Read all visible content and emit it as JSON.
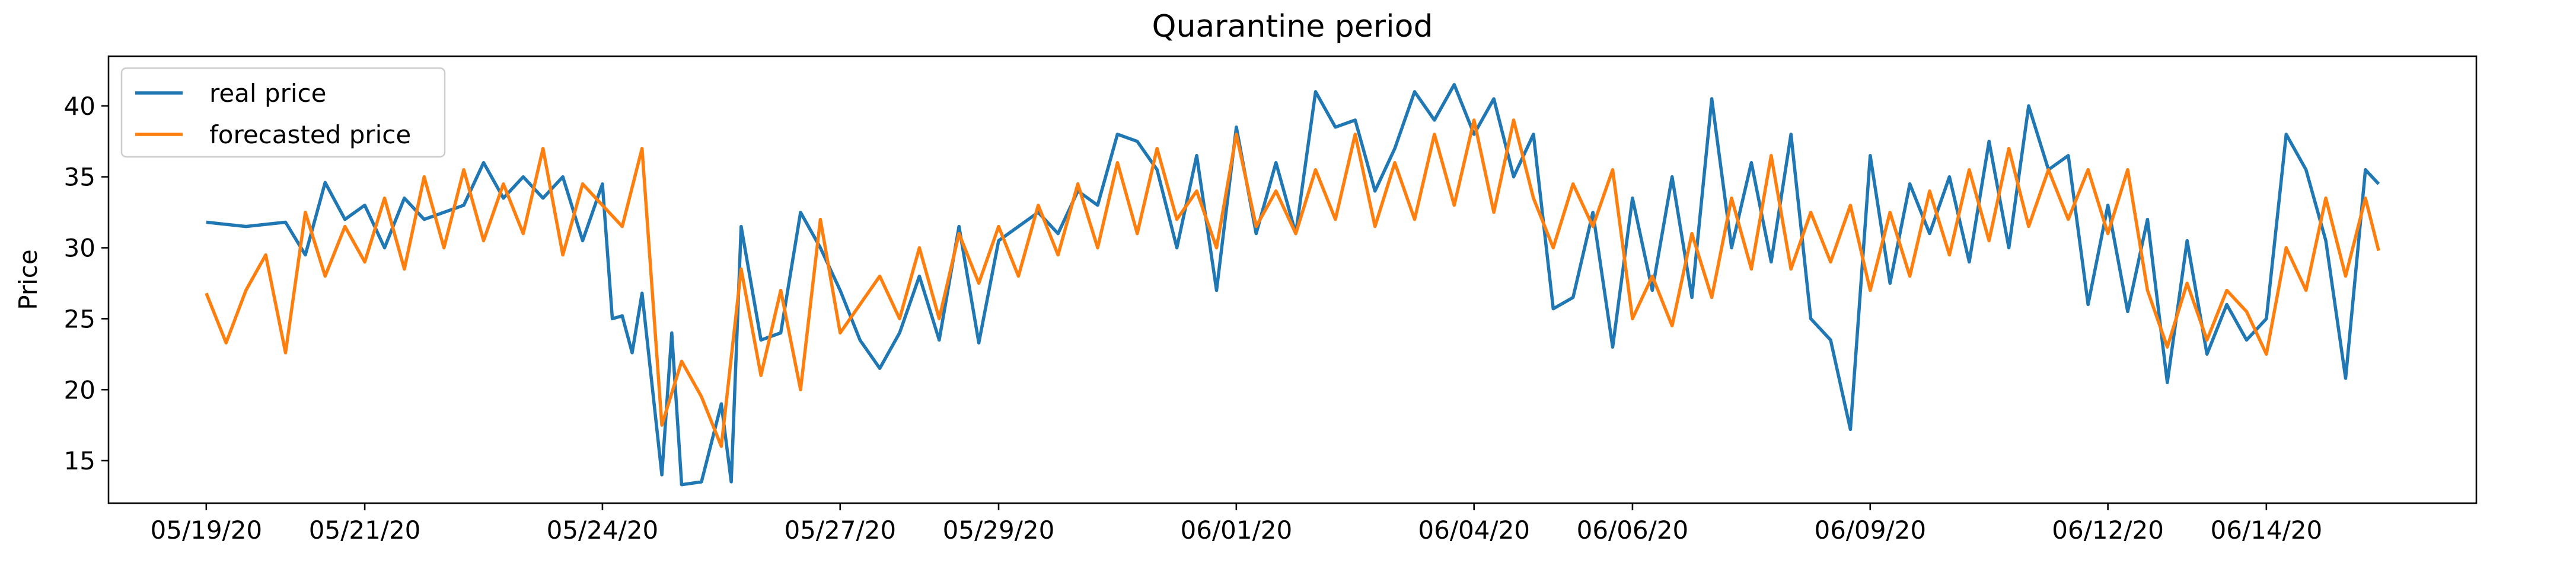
{
  "chart_data": {
    "type": "line",
    "title": "Quarantine period",
    "xlabel": "",
    "ylabel": "Price",
    "ylim": [
      12,
      43.5
    ],
    "yticks": [
      15,
      20,
      25,
      30,
      35,
      40
    ],
    "x_tick_labels": [
      "05/19/20",
      "05/21/20",
      "05/24/20",
      "05/27/20",
      "05/29/20",
      "06/01/20",
      "06/04/20",
      "06/06/20",
      "06/09/20",
      "06/12/20",
      "06/14/20"
    ],
    "x_tick_dates": [
      "2020-05-19",
      "2020-05-21",
      "2020-05-24",
      "2020-05-27",
      "2020-05-29",
      "2020-06-01",
      "2020-06-04",
      "2020-06-06",
      "2020-06-09",
      "2020-06-12",
      "2020-06-14"
    ],
    "legend": {
      "position": "top-left"
    },
    "grid": false,
    "series": [
      {
        "name": "real price",
        "color": "#1f77b4",
        "points": [
          [
            "2020-05-19 00:00",
            31.8
          ],
          [
            "2020-05-19 12:00",
            31.5
          ],
          [
            "2020-05-20 00:00",
            31.8
          ],
          [
            "2020-05-20 06:00",
            29.5
          ],
          [
            "2020-05-20 12:00",
            34.6
          ],
          [
            "2020-05-20 18:00",
            32.0
          ],
          [
            "2020-05-21 00:00",
            33.0
          ],
          [
            "2020-05-21 06:00",
            30.0
          ],
          [
            "2020-05-21 12:00",
            33.5
          ],
          [
            "2020-05-21 18:00",
            32.0
          ],
          [
            "2020-05-22 00:00",
            32.5
          ],
          [
            "2020-05-22 06:00",
            33.0
          ],
          [
            "2020-05-22 12:00",
            36.0
          ],
          [
            "2020-05-22 18:00",
            33.5
          ],
          [
            "2020-05-23 00:00",
            35.0
          ],
          [
            "2020-05-23 06:00",
            33.5
          ],
          [
            "2020-05-23 12:00",
            35.0
          ],
          [
            "2020-05-23 18:00",
            30.5
          ],
          [
            "2020-05-24 00:00",
            34.5
          ],
          [
            "2020-05-24 03:00",
            25.0
          ],
          [
            "2020-05-24 06:00",
            25.2
          ],
          [
            "2020-05-24 09:00",
            22.6
          ],
          [
            "2020-05-24 12:00",
            26.8
          ],
          [
            "2020-05-24 18:00",
            14.0
          ],
          [
            "2020-05-24 21:00",
            24.0
          ],
          [
            "2020-05-25 00:00",
            13.3
          ],
          [
            "2020-05-25 06:00",
            13.5
          ],
          [
            "2020-05-25 12:00",
            19.0
          ],
          [
            "2020-05-25 15:00",
            13.5
          ],
          [
            "2020-05-25 18:00",
            31.5
          ],
          [
            "2020-05-26 00:00",
            23.5
          ],
          [
            "2020-05-26 06:00",
            24.0
          ],
          [
            "2020-05-26 12:00",
            32.5
          ],
          [
            "2020-05-26 18:00",
            30.0
          ],
          [
            "2020-05-27 00:00",
            27.0
          ],
          [
            "2020-05-27 06:00",
            23.5
          ],
          [
            "2020-05-27 12:00",
            21.5
          ],
          [
            "2020-05-27 18:00",
            24.0
          ],
          [
            "2020-05-28 00:00",
            28.0
          ],
          [
            "2020-05-28 06:00",
            23.5
          ],
          [
            "2020-05-28 12:00",
            31.5
          ],
          [
            "2020-05-28 18:00",
            23.3
          ],
          [
            "2020-05-29 00:00",
            30.5
          ],
          [
            "2020-05-29 06:00",
            31.5
          ],
          [
            "2020-05-29 12:00",
            32.5
          ],
          [
            "2020-05-29 18:00",
            31.0
          ],
          [
            "2020-05-30 00:00",
            34.0
          ],
          [
            "2020-05-30 06:00",
            33.0
          ],
          [
            "2020-05-30 12:00",
            38.0
          ],
          [
            "2020-05-30 18:00",
            37.5
          ],
          [
            "2020-05-31 00:00",
            35.5
          ],
          [
            "2020-05-31 06:00",
            30.0
          ],
          [
            "2020-05-31 12:00",
            36.5
          ],
          [
            "2020-05-31 18:00",
            27.0
          ],
          [
            "2020-06-01 00:00",
            38.5
          ],
          [
            "2020-06-01 06:00",
            31.0
          ],
          [
            "2020-06-01 12:00",
            36.0
          ],
          [
            "2020-06-01 18:00",
            31.0
          ],
          [
            "2020-06-02 00:00",
            41.0
          ],
          [
            "2020-06-02 06:00",
            38.5
          ],
          [
            "2020-06-02 12:00",
            39.0
          ],
          [
            "2020-06-02 18:00",
            34.0
          ],
          [
            "2020-06-03 00:00",
            37.0
          ],
          [
            "2020-06-03 06:00",
            41.0
          ],
          [
            "2020-06-03 12:00",
            39.0
          ],
          [
            "2020-06-03 18:00",
            41.5
          ],
          [
            "2020-06-04 00:00",
            38.0
          ],
          [
            "2020-06-04 06:00",
            40.5
          ],
          [
            "2020-06-04 12:00",
            35.0
          ],
          [
            "2020-06-04 18:00",
            38.0
          ],
          [
            "2020-06-05 00:00",
            25.7
          ],
          [
            "2020-06-05 06:00",
            26.5
          ],
          [
            "2020-06-05 12:00",
            32.5
          ],
          [
            "2020-06-05 18:00",
            23.0
          ],
          [
            "2020-06-06 00:00",
            33.5
          ],
          [
            "2020-06-06 06:00",
            27.0
          ],
          [
            "2020-06-06 12:00",
            35.0
          ],
          [
            "2020-06-06 18:00",
            26.5
          ],
          [
            "2020-06-07 00:00",
            40.5
          ],
          [
            "2020-06-07 06:00",
            30.0
          ],
          [
            "2020-06-07 12:00",
            36.0
          ],
          [
            "2020-06-07 18:00",
            29.0
          ],
          [
            "2020-06-08 00:00",
            38.0
          ],
          [
            "2020-06-08 06:00",
            25.0
          ],
          [
            "2020-06-08 12:00",
            23.5
          ],
          [
            "2020-06-08 18:00",
            17.2
          ],
          [
            "2020-06-09 00:00",
            36.5
          ],
          [
            "2020-06-09 06:00",
            27.5
          ],
          [
            "2020-06-09 12:00",
            34.5
          ],
          [
            "2020-06-09 18:00",
            31.0
          ],
          [
            "2020-06-10 00:00",
            35.0
          ],
          [
            "2020-06-10 06:00",
            29.0
          ],
          [
            "2020-06-10 12:00",
            37.5
          ],
          [
            "2020-06-10 18:00",
            30.0
          ],
          [
            "2020-06-11 00:00",
            40.0
          ],
          [
            "2020-06-11 06:00",
            35.5
          ],
          [
            "2020-06-11 12:00",
            36.5
          ],
          [
            "2020-06-11 18:00",
            26.0
          ],
          [
            "2020-06-12 00:00",
            33.0
          ],
          [
            "2020-06-12 06:00",
            25.5
          ],
          [
            "2020-06-12 12:00",
            32.0
          ],
          [
            "2020-06-12 18:00",
            20.5
          ],
          [
            "2020-06-13 00:00",
            30.5
          ],
          [
            "2020-06-13 06:00",
            22.5
          ],
          [
            "2020-06-13 12:00",
            26.0
          ],
          [
            "2020-06-13 18:00",
            23.5
          ],
          [
            "2020-06-14 00:00",
            25.0
          ],
          [
            "2020-06-14 06:00",
            38.0
          ],
          [
            "2020-06-14 12:00",
            35.5
          ],
          [
            "2020-06-14 18:00",
            30.5
          ],
          [
            "2020-06-15 00:00",
            20.8
          ],
          [
            "2020-06-15 06:00",
            35.5
          ],
          [
            "2020-06-15 10:00",
            34.5
          ]
        ]
      },
      {
        "name": "forecasted price",
        "color": "#ff7f0e",
        "points": [
          [
            "2020-05-19 00:00",
            26.8
          ],
          [
            "2020-05-19 06:00",
            23.3
          ],
          [
            "2020-05-19 12:00",
            27.0
          ],
          [
            "2020-05-19 18:00",
            29.5
          ],
          [
            "2020-05-20 00:00",
            22.6
          ],
          [
            "2020-05-20 06:00",
            32.5
          ],
          [
            "2020-05-20 12:00",
            28.0
          ],
          [
            "2020-05-20 18:00",
            31.5
          ],
          [
            "2020-05-21 00:00",
            29.0
          ],
          [
            "2020-05-21 06:00",
            33.5
          ],
          [
            "2020-05-21 12:00",
            28.5
          ],
          [
            "2020-05-21 18:00",
            35.0
          ],
          [
            "2020-05-22 00:00",
            30.0
          ],
          [
            "2020-05-22 06:00",
            35.5
          ],
          [
            "2020-05-22 12:00",
            30.5
          ],
          [
            "2020-05-22 18:00",
            34.5
          ],
          [
            "2020-05-23 00:00",
            31.0
          ],
          [
            "2020-05-23 06:00",
            37.0
          ],
          [
            "2020-05-23 12:00",
            29.5
          ],
          [
            "2020-05-23 18:00",
            34.5
          ],
          [
            "2020-05-24 00:00",
            33.0
          ],
          [
            "2020-05-24 06:00",
            31.5
          ],
          [
            "2020-05-24 12:00",
            37.0
          ],
          [
            "2020-05-24 18:00",
            17.5
          ],
          [
            "2020-05-25 00:00",
            22.0
          ],
          [
            "2020-05-25 06:00",
            19.5
          ],
          [
            "2020-05-25 12:00",
            16.0
          ],
          [
            "2020-05-25 18:00",
            28.5
          ],
          [
            "2020-05-26 00:00",
            21.0
          ],
          [
            "2020-05-26 06:00",
            27.0
          ],
          [
            "2020-05-26 12:00",
            20.0
          ],
          [
            "2020-05-26 18:00",
            32.0
          ],
          [
            "2020-05-27 00:00",
            24.0
          ],
          [
            "2020-05-27 06:00",
            26.0
          ],
          [
            "2020-05-27 12:00",
            28.0
          ],
          [
            "2020-05-27 18:00",
            25.0
          ],
          [
            "2020-05-28 00:00",
            30.0
          ],
          [
            "2020-05-28 06:00",
            25.0
          ],
          [
            "2020-05-28 12:00",
            31.0
          ],
          [
            "2020-05-28 18:00",
            27.5
          ],
          [
            "2020-05-29 00:00",
            31.5
          ],
          [
            "2020-05-29 06:00",
            28.0
          ],
          [
            "2020-05-29 12:00",
            33.0
          ],
          [
            "2020-05-29 18:00",
            29.5
          ],
          [
            "2020-05-30 00:00",
            34.5
          ],
          [
            "2020-05-30 06:00",
            30.0
          ],
          [
            "2020-05-30 12:00",
            36.0
          ],
          [
            "2020-05-30 18:00",
            31.0
          ],
          [
            "2020-05-31 00:00",
            37.0
          ],
          [
            "2020-05-31 06:00",
            32.0
          ],
          [
            "2020-05-31 12:00",
            34.0
          ],
          [
            "2020-05-31 18:00",
            30.0
          ],
          [
            "2020-06-01 00:00",
            38.0
          ],
          [
            "2020-06-01 06:00",
            31.5
          ],
          [
            "2020-06-01 12:00",
            34.0
          ],
          [
            "2020-06-01 18:00",
            31.0
          ],
          [
            "2020-06-02 00:00",
            35.5
          ],
          [
            "2020-06-02 06:00",
            32.0
          ],
          [
            "2020-06-02 12:00",
            38.0
          ],
          [
            "2020-06-02 18:00",
            31.5
          ],
          [
            "2020-06-03 00:00",
            36.0
          ],
          [
            "2020-06-03 06:00",
            32.0
          ],
          [
            "2020-06-03 12:00",
            38.0
          ],
          [
            "2020-06-03 18:00",
            33.0
          ],
          [
            "2020-06-04 00:00",
            39.0
          ],
          [
            "2020-06-04 06:00",
            32.5
          ],
          [
            "2020-06-04 12:00",
            39.0
          ],
          [
            "2020-06-04 18:00",
            33.5
          ],
          [
            "2020-06-05 00:00",
            30.0
          ],
          [
            "2020-06-05 06:00",
            34.5
          ],
          [
            "2020-06-05 12:00",
            31.5
          ],
          [
            "2020-06-05 18:00",
            35.5
          ],
          [
            "2020-06-06 00:00",
            25.0
          ],
          [
            "2020-06-06 06:00",
            28.0
          ],
          [
            "2020-06-06 12:00",
            24.5
          ],
          [
            "2020-06-06 18:00",
            31.0
          ],
          [
            "2020-06-07 00:00",
            26.5
          ],
          [
            "2020-06-07 06:00",
            33.5
          ],
          [
            "2020-06-07 12:00",
            28.5
          ],
          [
            "2020-06-07 18:00",
            36.5
          ],
          [
            "2020-06-08 00:00",
            28.5
          ],
          [
            "2020-06-08 06:00",
            32.5
          ],
          [
            "2020-06-08 12:00",
            29.0
          ],
          [
            "2020-06-08 18:00",
            33.0
          ],
          [
            "2020-06-09 00:00",
            27.0
          ],
          [
            "2020-06-09 06:00",
            32.5
          ],
          [
            "2020-06-09 12:00",
            28.0
          ],
          [
            "2020-06-09 18:00",
            34.0
          ],
          [
            "2020-06-10 00:00",
            29.5
          ],
          [
            "2020-06-10 06:00",
            35.5
          ],
          [
            "2020-06-10 12:00",
            30.5
          ],
          [
            "2020-06-10 18:00",
            37.0
          ],
          [
            "2020-06-11 00:00",
            31.5
          ],
          [
            "2020-06-11 06:00",
            35.5
          ],
          [
            "2020-06-11 12:00",
            32.0
          ],
          [
            "2020-06-11 18:00",
            35.5
          ],
          [
            "2020-06-12 00:00",
            31.0
          ],
          [
            "2020-06-12 06:00",
            35.5
          ],
          [
            "2020-06-12 12:00",
            27.0
          ],
          [
            "2020-06-12 18:00",
            23.0
          ],
          [
            "2020-06-13 00:00",
            27.5
          ],
          [
            "2020-06-13 06:00",
            23.5
          ],
          [
            "2020-06-13 12:00",
            27.0
          ],
          [
            "2020-06-13 18:00",
            25.5
          ],
          [
            "2020-06-14 00:00",
            22.5
          ],
          [
            "2020-06-14 06:00",
            30.0
          ],
          [
            "2020-06-14 12:00",
            27.0
          ],
          [
            "2020-06-14 18:00",
            33.5
          ],
          [
            "2020-06-15 00:00",
            28.0
          ],
          [
            "2020-06-15 06:00",
            33.5
          ],
          [
            "2020-06-15 10:00",
            29.8
          ]
        ]
      }
    ]
  }
}
